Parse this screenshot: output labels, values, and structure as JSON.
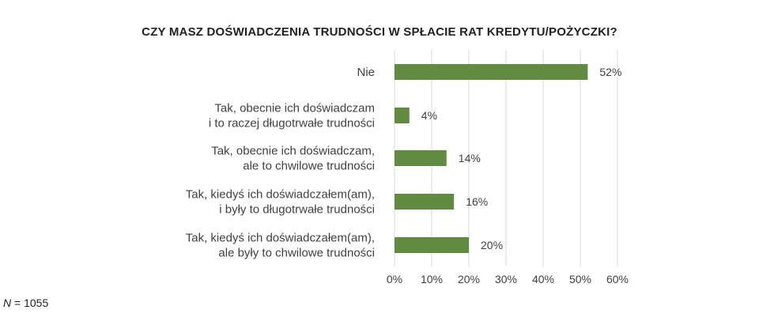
{
  "chart_data": {
    "type": "bar",
    "orientation": "horizontal",
    "title": "CZY MASZ DOŚWIADCZENIA TRUDNOŚCI W SPŁACIE RAT KREDYTU/POŻYCZKI?",
    "categories": [
      [
        "Nie"
      ],
      [
        "Tak, obecnie ich doświadczam",
        "i to raczej długotrwałe trudności"
      ],
      [
        "Tak, obecnie ich doświadczam,",
        "ale to chwilowe trudności"
      ],
      [
        "Tak, kiedyś ich doświadczałem(am),",
        "i były to długotrwałe trudności"
      ],
      [
        "Tak, kiedyś ich doświadczałem(am),",
        "ale były to chwilowe trudności"
      ]
    ],
    "values": [
      52,
      4,
      14,
      16,
      20
    ],
    "value_labels": [
      "52%",
      "4%",
      "14%",
      "16%",
      "20%"
    ],
    "xlim": [
      0,
      60
    ],
    "xticks": [
      0,
      10,
      20,
      30,
      40,
      50,
      60
    ],
    "xtick_labels": [
      "0%",
      "10%",
      "20%",
      "30%",
      "40%",
      "50%",
      "60%"
    ],
    "grid": "vertical",
    "legend": "none",
    "bar_color": "#628B42",
    "grid_color": "#D9D9D9"
  },
  "note": {
    "n_symbol": "N",
    "n_text": " = 1055"
  }
}
